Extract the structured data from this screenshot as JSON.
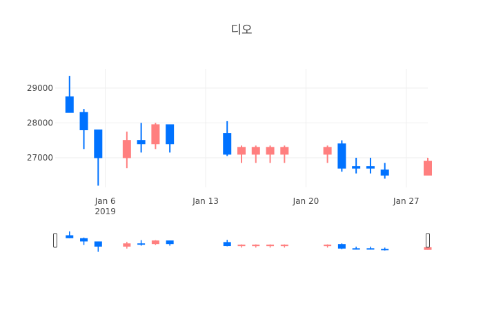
{
  "chart_data": {
    "type": "candlestick",
    "title": "디오",
    "colors": {
      "increasing": "#ff7f7f",
      "decreasing": "#0072ff",
      "grid": "#eeeeee",
      "text": "#444444",
      "slider_border": "#444444"
    },
    "grid": true,
    "xlabel": "",
    "ylabel": "",
    "x_range": [
      "2019-01-02T12:00",
      "2019-01-28T12:00"
    ],
    "ylim": [
      26150,
      29550
    ],
    "y_ticks": [
      27000,
      28000,
      29000
    ],
    "y_tick_labels": [
      "27000",
      "28000",
      "29000"
    ],
    "x_ticks": [
      {
        "date": "2019-01-06",
        "label": "Jan 6",
        "sublabel": "2019"
      },
      {
        "date": "2019-01-13",
        "label": "Jan 13",
        "sublabel": ""
      },
      {
        "date": "2019-01-20",
        "label": "Jan 20",
        "sublabel": ""
      },
      {
        "date": "2019-01-27",
        "label": "Jan 27",
        "sublabel": ""
      }
    ],
    "candles": [
      {
        "date": "2019-01-03",
        "open": 28750,
        "high": 29350,
        "low": 28300,
        "close": 28300
      },
      {
        "date": "2019-01-04",
        "open": 28300,
        "high": 28400,
        "low": 27250,
        "close": 27800
      },
      {
        "date": "2019-01-05",
        "open": 27800,
        "high": 27800,
        "low": 26200,
        "close": 27000
      },
      {
        "date": "2019-01-07",
        "open": 27000,
        "high": 27750,
        "low": 26700,
        "close": 27500
      },
      {
        "date": "2019-01-08",
        "open": 27500,
        "high": 28000,
        "low": 27150,
        "close": 27400
      },
      {
        "date": "2019-01-09",
        "open": 27400,
        "high": 28000,
        "low": 27250,
        "close": 27950
      },
      {
        "date": "2019-01-10",
        "open": 27950,
        "high": 27950,
        "low": 27150,
        "close": 27400
      },
      {
        "date": "2019-01-14",
        "open": 27700,
        "high": 28050,
        "low": 27050,
        "close": 27100
      },
      {
        "date": "2019-01-15",
        "open": 27100,
        "high": 27350,
        "low": 26850,
        "close": 27300
      },
      {
        "date": "2019-01-16",
        "open": 27100,
        "high": 27350,
        "low": 26850,
        "close": 27300
      },
      {
        "date": "2019-01-17",
        "open": 27100,
        "high": 27350,
        "low": 26850,
        "close": 27300
      },
      {
        "date": "2019-01-18",
        "open": 27100,
        "high": 27350,
        "low": 26850,
        "close": 27300
      },
      {
        "date": "2019-01-21",
        "open": 27100,
        "high": 27350,
        "low": 26850,
        "close": 27300
      },
      {
        "date": "2019-01-22",
        "open": 27400,
        "high": 27500,
        "low": 26600,
        "close": 26700
      },
      {
        "date": "2019-01-23",
        "open": 26750,
        "high": 27000,
        "low": 26550,
        "close": 26700
      },
      {
        "date": "2019-01-24",
        "open": 26750,
        "high": 27000,
        "low": 26550,
        "close": 26700
      },
      {
        "date": "2019-01-25",
        "open": 26650,
        "high": 26850,
        "low": 26400,
        "close": 26500
      },
      {
        "date": "2019-01-28",
        "open": 26500,
        "high": 27000,
        "low": 26500,
        "close": 26900
      }
    ],
    "range_slider": true
  }
}
